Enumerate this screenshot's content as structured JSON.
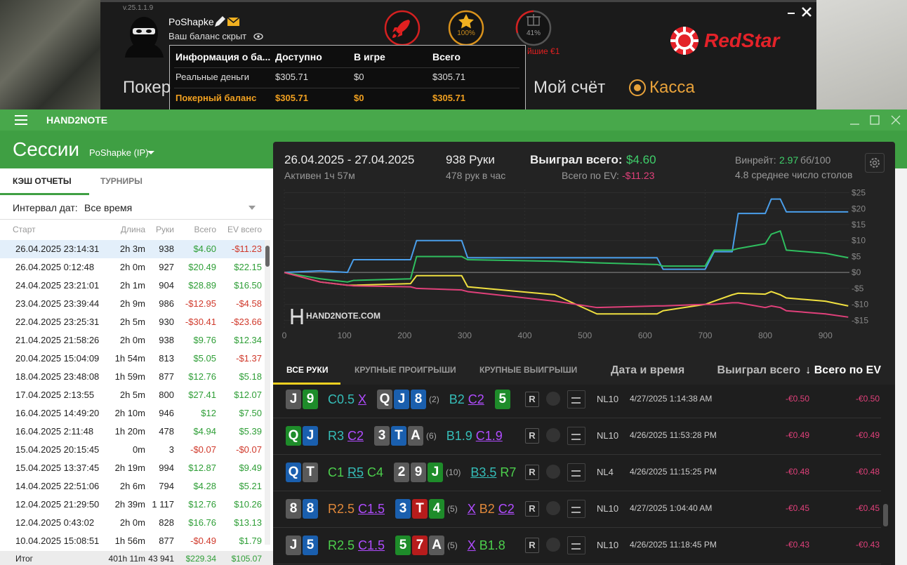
{
  "client": {
    "version": "v.25.1.1.9",
    "user": "PoShapke",
    "balance_hidden": "Ваш баланс скрыт",
    "star_pct": "100%",
    "gift_pct": "41%",
    "promo_fragment": "йшие €1",
    "brand": "RedStar",
    "menu": [
      "Покер",
      "Мой счёт",
      "Касса"
    ],
    "balance_table": {
      "headers": [
        "Информация о ба...",
        "Доступно",
        "В игре",
        "Всего"
      ],
      "rows": [
        [
          "Реальные деньги",
          "$305.71",
          "$0",
          "$305.71"
        ],
        [
          "Покерный баланс",
          "$305.71",
          "$0",
          "$305.71"
        ]
      ]
    }
  },
  "app": {
    "title": "HAND2NOTE",
    "section": "Сессии",
    "player": "PoShapke (IP)",
    "tabs": [
      "КЭШ ОТЧЕТЫ",
      "ТУРНИРЫ"
    ],
    "interval_label": "Интервал дат:",
    "interval_value": "Все время",
    "sessions": {
      "columns": [
        "Старт",
        "Длина",
        "Руки",
        "Всего",
        "EV всего"
      ],
      "rows": [
        [
          "26.04.2025 23:14:31",
          "2h 3m",
          "938",
          "$4.60",
          "-$11.23"
        ],
        [
          "26.04.2025 0:12:48",
          "2h 0m",
          "927",
          "$20.49",
          "$22.15"
        ],
        [
          "24.04.2025 23:21:01",
          "2h 1m",
          "904",
          "$28.89",
          "$16.50"
        ],
        [
          "23.04.2025 23:39:44",
          "2h 9m",
          "986",
          "-$12.95",
          "-$4.58"
        ],
        [
          "22.04.2025 23:25:31",
          "2h 5m",
          "930",
          "-$30.41",
          "-$23.66"
        ],
        [
          "21.04.2025 21:58:26",
          "2h 0m",
          "938",
          "$9.76",
          "$12.34"
        ],
        [
          "20.04.2025 15:04:09",
          "1h 54m",
          "813",
          "$5.05",
          "-$1.37"
        ],
        [
          "18.04.2025 23:48:08",
          "1h 59m",
          "877",
          "$12.76",
          "$5.18"
        ],
        [
          "17.04.2025 2:13:55",
          "2h 5m",
          "800",
          "$27.41",
          "$12.07"
        ],
        [
          "16.04.2025 14:49:20",
          "2h 10m",
          "946",
          "$12",
          "$7.50"
        ],
        [
          "16.04.2025 2:11:48",
          "1h 20m",
          "478",
          "$4.94",
          "$5.39"
        ],
        [
          "15.04.2025 20:15:45",
          "0m",
          "3",
          "-$0.07",
          "-$0.07"
        ],
        [
          "15.04.2025 13:37:45",
          "2h 19m",
          "994",
          "$12.87",
          "$9.49"
        ],
        [
          "14.04.2025 22:51:06",
          "2h 6m",
          "794",
          "$4.28",
          "$5.21"
        ],
        [
          "12.04.2025 21:29:50",
          "2h 39m",
          "1 117",
          "$12.76",
          "$10.26"
        ],
        [
          "12.04.2025 0:43:02",
          "2h 0m",
          "828",
          "$16.76",
          "$13.13"
        ],
        [
          "10.04.2025 15:08:51",
          "1h 56m",
          "877",
          "-$0.49",
          "$1.79"
        ]
      ],
      "total": [
        "Итог",
        "401h 11m",
        "43 941",
        "$229.34",
        "$105.07"
      ]
    },
    "summary": {
      "date_range": "26.04.2025 - 27.04.2025",
      "active": "Активен 1ч 57м",
      "hands": "938 Руки",
      "hands_per_hour": "478 рук в час",
      "won_label": "Выиграл всего:",
      "won": "$4.60",
      "ev_label": "Всего по EV:",
      "ev": "-$11.23",
      "winrate_label": "Винрейт:",
      "winrate": "2.97",
      "winrate_unit": "бб/100",
      "tables": "4.8 среднее число столов"
    },
    "hand_tabs": [
      "ВСЕ РУКИ",
      "КРУПНЫЕ ПРОИГРЫШИ",
      "КРУПНЫЕ ВЫИГРЫШИ"
    ],
    "hand_columns": [
      "Дата и время",
      "Выиграл всего",
      "↓ Всего по EV"
    ],
    "replay_button": "R",
    "hands": [
      {
        "hole": [
          {
            "rank": "J",
            "color": "#5a5a5a"
          },
          {
            "rank": "9",
            "color": "#1e8c2a"
          }
        ],
        "preflop": [
          {
            "text": "C0.5",
            "color": "#35bdb8"
          },
          {
            "text": "X",
            "color": "#b04cff",
            "underline": true
          }
        ],
        "flop": [
          {
            "rank": "Q",
            "color": "#5a5a5a"
          },
          {
            "rank": "J",
            "color": "#1a5fae"
          },
          {
            "rank": "8",
            "color": "#1a5fae"
          }
        ],
        "players": "(2)",
        "flop_actions": [
          {
            "text": "B2",
            "color": "#35bdb8"
          },
          {
            "text": "C2",
            "color": "#b04cff",
            "underline": true
          }
        ],
        "turn": [
          {
            "rank": "5",
            "color": "#1e8c2a"
          }
        ],
        "game": "NL10",
        "date": "4/27/2025 1:14:38 AM",
        "won": "-€0.50",
        "ev": "-€0.50"
      },
      {
        "hole": [
          {
            "rank": "Q",
            "color": "#1e8c2a"
          },
          {
            "rank": "J",
            "color": "#1a5fae"
          }
        ],
        "preflop": [
          {
            "text": "R3",
            "color": "#35bdb8"
          },
          {
            "text": "C2",
            "color": "#b04cff",
            "underline": true
          }
        ],
        "flop": [
          {
            "rank": "3",
            "color": "#5a5a5a"
          },
          {
            "rank": "T",
            "color": "#1a5fae"
          },
          {
            "rank": "A",
            "color": "#5a5a5a"
          }
        ],
        "players": "(6)",
        "flop_actions": [
          {
            "text": "B1.9",
            "color": "#35bdb8"
          },
          {
            "text": "C1.9",
            "color": "#b04cff",
            "underline": true
          }
        ],
        "turn": [],
        "game": "NL10",
        "date": "4/26/2025 11:53:28 PM",
        "won": "-€0.49",
        "ev": "-€0.49"
      },
      {
        "hole": [
          {
            "rank": "Q",
            "color": "#1a5fae"
          },
          {
            "rank": "T",
            "color": "#5a5a5a"
          }
        ],
        "preflop": [
          {
            "text": "C1",
            "color": "#4ccf4c"
          },
          {
            "text": "R5",
            "color": "#35bdb8",
            "underline": true
          },
          {
            "text": "C4",
            "color": "#4ccf4c"
          }
        ],
        "flop": [
          {
            "rank": "2",
            "color": "#5a5a5a"
          },
          {
            "rank": "9",
            "color": "#5a5a5a"
          },
          {
            "rank": "J",
            "color": "#1e8c2a"
          }
        ],
        "players": "(10)",
        "flop_actions": [
          {
            "text": "B3.5",
            "color": "#35bdb8",
            "underline": true
          },
          {
            "text": "R7",
            "color": "#4ccf4c"
          }
        ],
        "turn": [],
        "game": "NL4",
        "date": "4/26/2025 11:15:25 PM",
        "won": "-€0.48",
        "ev": "-€0.48"
      },
      {
        "hole": [
          {
            "rank": "8",
            "color": "#5a5a5a"
          },
          {
            "rank": "8",
            "color": "#1a5fae"
          }
        ],
        "preflop": [
          {
            "text": "R2.5",
            "color": "#e0883a"
          },
          {
            "text": "C1.5",
            "color": "#b04cff",
            "underline": true
          }
        ],
        "flop": [
          {
            "rank": "3",
            "color": "#1a5fae"
          },
          {
            "rank": "T",
            "color": "#b71c1c"
          },
          {
            "rank": "4",
            "color": "#1e8c2a"
          }
        ],
        "players": "(5)",
        "flop_actions": [
          {
            "text": "X",
            "color": "#b04cff",
            "underline": true
          },
          {
            "text": "B2",
            "color": "#e0883a"
          },
          {
            "text": "C2",
            "color": "#b04cff",
            "underline": true
          }
        ],
        "turn": [],
        "game": "NL10",
        "date": "4/27/2025 1:04:40 AM",
        "won": "-€0.45",
        "ev": "-€0.45"
      },
      {
        "hole": [
          {
            "rank": "J",
            "color": "#5a5a5a"
          },
          {
            "rank": "5",
            "color": "#1a5fae"
          }
        ],
        "preflop": [
          {
            "text": "R2.5",
            "color": "#4ccf4c"
          },
          {
            "text": "C1.5",
            "color": "#b04cff",
            "underline": true
          }
        ],
        "flop": [
          {
            "rank": "5",
            "color": "#1e8c2a"
          },
          {
            "rank": "7",
            "color": "#b71c1c"
          },
          {
            "rank": "A",
            "color": "#5a5a5a"
          }
        ],
        "players": "(5)",
        "flop_actions": [
          {
            "text": "X",
            "color": "#b04cff",
            "underline": true
          },
          {
            "text": "B1.8",
            "color": "#4ccf4c"
          }
        ],
        "turn": [],
        "game": "NL10",
        "date": "4/26/2025 11:18:45 PM",
        "won": "-€0.43",
        "ev": "-€0.43"
      }
    ]
  },
  "chart_data": {
    "type": "line",
    "watermark": "HAND2NOTE.COM",
    "grid": true,
    "x": [
      0,
      60,
      105,
      115,
      210,
      220,
      295,
      305,
      450,
      520,
      620,
      630,
      700,
      715,
      745,
      755,
      800,
      810,
      825,
      835,
      900,
      938
    ],
    "series": [
      {
        "color": "#4a9eea",
        "values": [
          0,
          0.5,
          0,
          4,
          4,
          10,
          10,
          4.6,
          4.6,
          4.6,
          4.6,
          1,
          1,
          6.5,
          6.5,
          18.5,
          18.5,
          23,
          23,
          19,
          19,
          19
        ]
      },
      {
        "color": "#2fbf5f",
        "values": [
          0,
          -2,
          -3,
          -2.5,
          -2,
          5,
          5,
          4,
          3.5,
          3,
          2.5,
          2,
          2,
          7,
          7,
          7.5,
          9,
          12,
          13,
          7,
          6,
          4.6
        ]
      },
      {
        "color": "#f0e040",
        "values": [
          0,
          -3,
          -4,
          -4,
          -3.5,
          -1,
          -1,
          -4.5,
          -7,
          -13,
          -13,
          -12,
          -10,
          -9,
          -7,
          -6.5,
          -6.8,
          -6,
          -7,
          -8,
          -9,
          -10.5
        ]
      },
      {
        "color": "#e0407a",
        "values": [
          0,
          -3,
          -4,
          -4.2,
          -4.5,
          -5,
          -5.5,
          -6,
          -9,
          -11,
          -10.5,
          -10.5,
          -10,
          -10,
          -9.5,
          -9.5,
          -11,
          -10.5,
          -11,
          -12,
          -13,
          -14
        ]
      }
    ],
    "xlim": [
      0,
      940
    ],
    "xticks": [
      0,
      100,
      200,
      300,
      400,
      500,
      600,
      700,
      800,
      900
    ],
    "ylim": [
      -18,
      26
    ],
    "yticks": [
      {
        "value": 25,
        "label": "$25"
      },
      {
        "value": 20,
        "label": "$20"
      },
      {
        "value": 15,
        "label": "$15"
      },
      {
        "value": 10,
        "label": "$10"
      },
      {
        "value": 5,
        "label": "$5"
      },
      {
        "value": 0,
        "label": "$0"
      },
      {
        "value": -5,
        "label": "-$5"
      },
      {
        "value": -10,
        "label": "-$10"
      },
      {
        "value": -15,
        "label": "-$15"
      }
    ]
  }
}
